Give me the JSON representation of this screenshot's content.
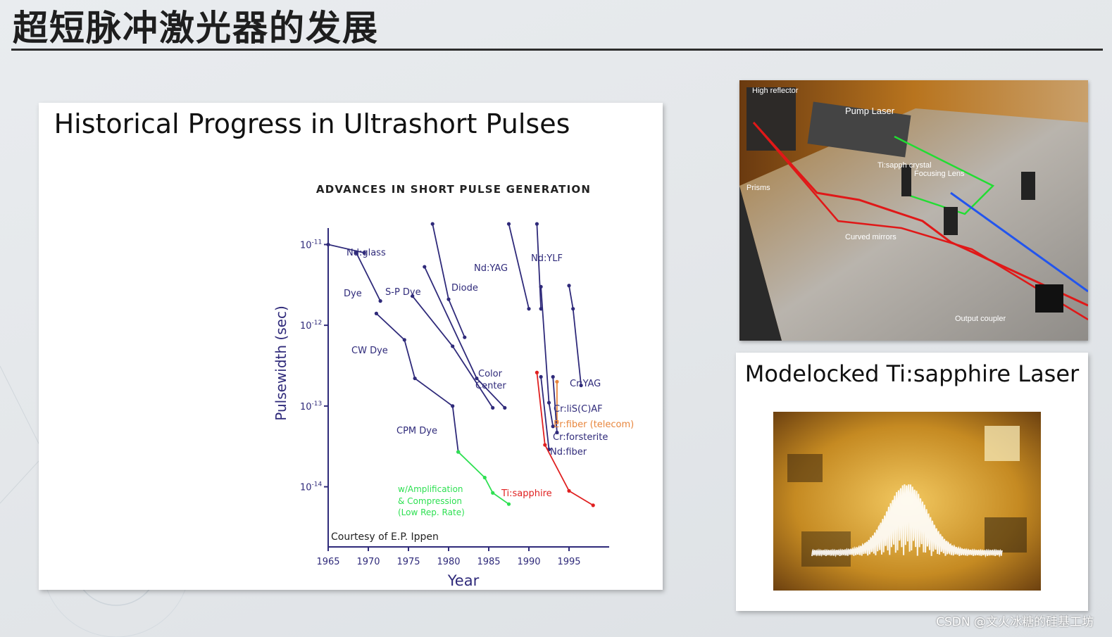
{
  "slide": {
    "title": "超短脉冲激光器的发展",
    "watermark": "CSDN @文火冰糖的硅基工坊"
  },
  "left_panel": {
    "title": "Historical Progress in Ultrashort Pulses"
  },
  "chart_data": {
    "type": "line",
    "title": "ADVANCES IN SHORT PULSE GENERATION",
    "xlabel": "Year",
    "ylabel": "Pulsewidth (sec)",
    "x_ticks": [
      "1965",
      "1970",
      "1975",
      "1980",
      "1985",
      "1990",
      "1995"
    ],
    "y_scale": "log",
    "y_ticks": [
      {
        "value": 1e-11,
        "base": "10",
        "exp": "-11"
      },
      {
        "value": 1e-12,
        "base": "10",
        "exp": "-12"
      },
      {
        "value": 1e-13,
        "base": "10",
        "exp": "-13"
      },
      {
        "value": 1e-14,
        "base": "10",
        "exp": "-14"
      }
    ],
    "xlim": [
      1965,
      2000
    ],
    "ylim": [
      1.8e-15,
      1.6e-11
    ],
    "note": "Courtesy of E.P. Ippen",
    "series": [
      {
        "name": "Nd:glass",
        "color": "#2f2a7a",
        "points": [
          [
            1965,
            1e-11
          ],
          [
            1969.5,
            7.9e-12
          ]
        ]
      },
      {
        "name": "Dye",
        "color": "#2f2a7a",
        "points": [
          [
            1968.5,
            7.9e-12
          ],
          [
            1971.5,
            2e-12
          ]
        ]
      },
      {
        "name": "CW Dye",
        "color": "#2f2a7a",
        "points": [
          [
            1971,
            1.4e-12
          ],
          [
            1974.5,
            6.6e-13
          ],
          [
            1975.8,
            2.2e-13
          ],
          [
            1980.5,
            1e-13
          ],
          [
            1981.2,
            2.7e-14
          ]
        ]
      },
      {
        "name": "CPM Dye",
        "color": "#2f2a7a",
        "points": []
      },
      {
        "name": "w/Amplification & Compression (Low Rep. Rate)",
        "color": "#2ee052",
        "points": [
          [
            1981.2,
            2.7e-14
          ],
          [
            1984.5,
            1.3e-14
          ],
          [
            1985.5,
            8.4e-15
          ],
          [
            1987.5,
            6.1e-15
          ]
        ]
      },
      {
        "name": "S-P Dye",
        "color": "#2f2a7a",
        "points": [
          [
            1975.5,
            2.3e-12
          ],
          [
            1980.5,
            5.5e-13
          ],
          [
            1985.5,
            9.5e-14
          ]
        ]
      },
      {
        "name": "Color Center",
        "color": "#2f2a7a",
        "points": [
          [
            1977,
            5.3e-12
          ],
          [
            1983.5,
            2.2e-13
          ],
          [
            1987,
            9.5e-14
          ]
        ]
      },
      {
        "name": "Diode",
        "color": "#2f2a7a",
        "points": [
          [
            1978,
            1.8e-11
          ],
          [
            1980,
            2.1e-12
          ],
          [
            1982,
            7.1e-13
          ]
        ]
      },
      {
        "name": "Nd:YAG",
        "color": "#2f2a7a",
        "points": [
          [
            1987.5,
            1.8e-11
          ],
          [
            1990,
            1.6e-12
          ]
        ]
      },
      {
        "name": "Nd:YLF",
        "color": "#2f2a7a",
        "points": [
          [
            1991,
            1.8e-11
          ],
          [
            1991.5,
            1.6e-12
          ]
        ]
      },
      {
        "name": "Cr:YAG",
        "color": "#2f2a7a",
        "points": [
          [
            1995,
            3.1e-12
          ],
          [
            1995.5,
            1.6e-12
          ],
          [
            1996.5,
            1.8e-13
          ]
        ]
      },
      {
        "name": "Cr:liS(C)AF",
        "color": "#2f2a7a",
        "points": [
          [
            1991.5,
            3e-12
          ],
          [
            1992.5,
            1.1e-13
          ],
          [
            1993,
            5.6e-14
          ]
        ]
      },
      {
        "name": "Er:fiber (telecom)",
        "color": "#e8863d",
        "points": [
          [
            1993.5,
            2e-13
          ],
          [
            1993.5,
            6.3e-14
          ]
        ]
      },
      {
        "name": "Cr:forsterite",
        "color": "#2f2a7a",
        "points": [
          [
            1993,
            2.3e-13
          ],
          [
            1993.5,
            4.7e-14
          ]
        ]
      },
      {
        "name": "Nd:fiber",
        "color": "#2f2a7a",
        "points": [
          [
            1991.5,
            2.3e-13
          ],
          [
            1992.5,
            2.9e-14
          ]
        ]
      },
      {
        "name": "Ti:sapphire",
        "color": "#e02020",
        "points": [
          [
            1991,
            2.6e-13
          ],
          [
            1992,
            3.3e-14
          ],
          [
            1995,
            8.9e-15
          ],
          [
            1998,
            5.9e-15
          ]
        ]
      }
    ]
  },
  "photo_top": {
    "labels": [
      "High reflector",
      "Pump Laser",
      "Ti:sapph crystal",
      "Focusing Lens",
      "Prisms",
      "Curved mirrors",
      "Output coupler"
    ]
  },
  "right_panel": {
    "title": "Modelocked Ti:sapphire Laser"
  },
  "colors": {
    "chart_axis": "#2f2a7a",
    "ti_sapphire": "#e02020",
    "amplification": "#2ee052",
    "er_fiber": "#e8863d"
  }
}
